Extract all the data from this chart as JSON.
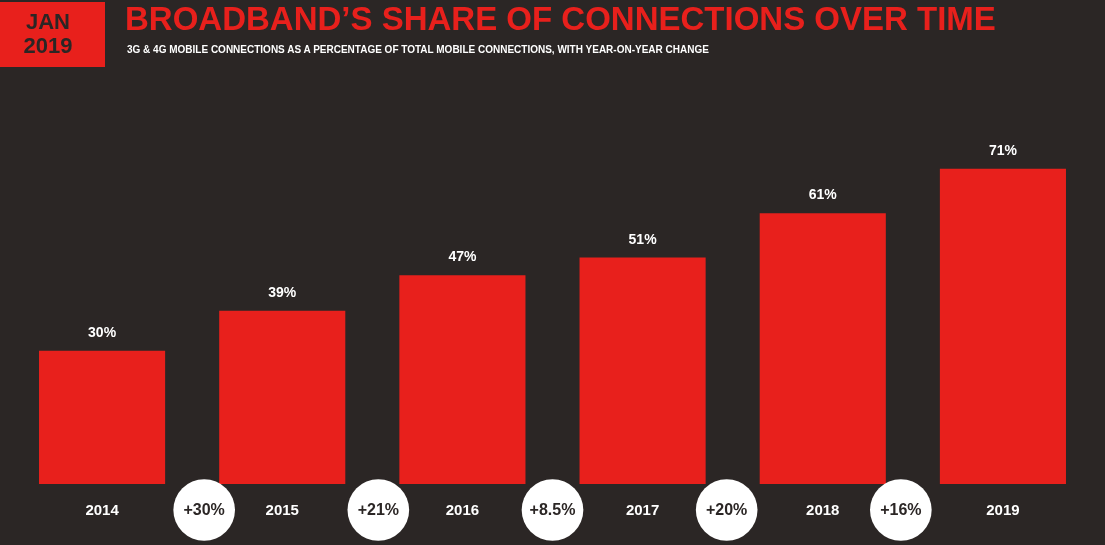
{
  "chart_data": {
    "type": "bar",
    "title": "BROADBAND’S SHARE OF CONNECTIONS OVER TIME",
    "subtitle": "3G & 4G MOBILE CONNECTIONS AS A PERCENTAGE OF TOTAL MOBILE CONNECTIONS, WITH YEAR-ON-YEAR CHANGE",
    "categories": [
      "2014",
      "2015",
      "2016",
      "2017",
      "2018",
      "2019"
    ],
    "values": [
      30,
      39,
      47,
      51,
      61,
      71
    ],
    "color": "#e8201c",
    "value_labels": [
      "30%",
      "39%",
      "47%",
      "51%",
      "61%",
      "71%"
    ],
    "annotations": [
      "JAN 2019",
      "+30%",
      "+21%",
      "+8.5%",
      "+20%",
      "+16%"
    ],
    "grid": false
  }
}
